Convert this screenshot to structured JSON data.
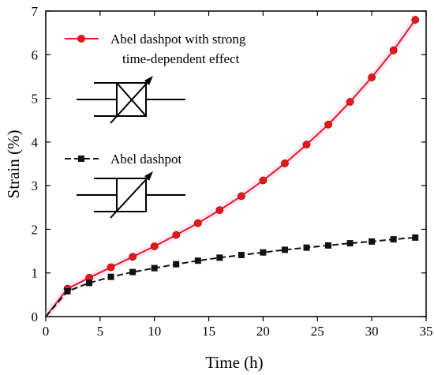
{
  "chart_data": {
    "type": "line",
    "xlabel": "Time (h)",
    "ylabel": "Strain (%)",
    "xlim": [
      0,
      35
    ],
    "ylim": [
      0,
      7
    ],
    "xticks": [
      0,
      5,
      10,
      15,
      20,
      25,
      30,
      35
    ],
    "yticks": [
      0,
      1,
      2,
      3,
      4,
      5,
      6,
      7
    ],
    "grid": false,
    "legend_position": "top-left",
    "series": [
      {
        "name": "Abel dashpot with strong time-dependent effect",
        "legend_lines": [
          "Abel dashpot with strong",
          "time-dependent effect"
        ],
        "marker": "circle",
        "color": "#e31a1c",
        "x": [
          0,
          2,
          4,
          6,
          8,
          10,
          12,
          14,
          16,
          18,
          20,
          22,
          24,
          26,
          28,
          30,
          32,
          34
        ],
        "y": [
          0,
          0.64,
          0.89,
          1.13,
          1.37,
          1.61,
          1.87,
          2.14,
          2.44,
          2.76,
          3.12,
          3.51,
          3.94,
          4.4,
          4.92,
          5.48,
          6.1,
          6.8
        ]
      },
      {
        "name": "Abel dashpot",
        "legend_lines": [
          "Abel dashpot"
        ],
        "marker": "square",
        "color": "#111111",
        "x": [
          0,
          2,
          4,
          6,
          8,
          10,
          12,
          14,
          16,
          18,
          20,
          22,
          24,
          26,
          28,
          30,
          32,
          34
        ],
        "y": [
          0,
          0.58,
          0.77,
          0.91,
          1.02,
          1.11,
          1.2,
          1.28,
          1.35,
          1.41,
          1.47,
          1.53,
          1.58,
          1.63,
          1.68,
          1.72,
          1.77,
          1.81
        ]
      }
    ]
  }
}
